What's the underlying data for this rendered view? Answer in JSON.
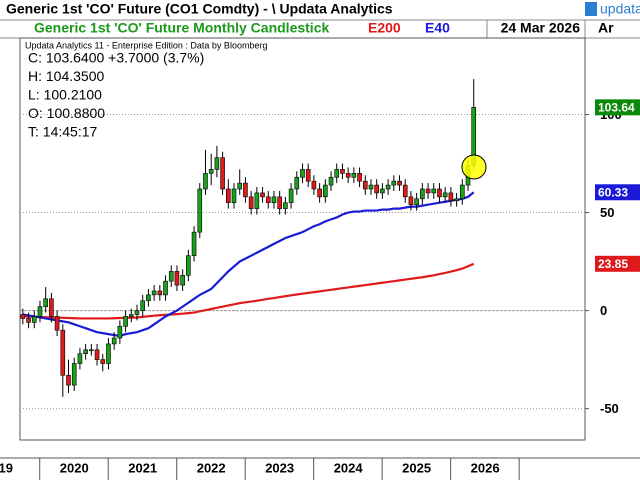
{
  "window_title": "Generic 1st 'CO' Future (CO1 Comdty) - \\ Updata Analytics",
  "logo": "updata",
  "toolbar_right": "Ar",
  "chart_data": {
    "type": "candlestick",
    "title": "Generic 1st 'CO' Future Monthly Candlestick",
    "date": "24 Mar 2026",
    "subtitle": "Updata Analytics 11 - Enterprise Edition : Data by Bloomberg",
    "info": [
      "C: 103.6400  +3.7000 (3.7%)",
      "H: 104.3500",
      "L: 100.2100",
      "O: 100.8800",
      "T: 14:45:17"
    ],
    "title_color": "#1a9a1a",
    "ohlc": {
      "up_color": "#1aa01a",
      "down_color": "#e01a1a",
      "last_color": "#0a8a0a",
      "open": [
        -2,
        -4,
        -6,
        -3,
        2,
        6,
        -3,
        -10,
        -33,
        -38,
        -27,
        -22,
        -20,
        -20,
        -25,
        -27,
        -17,
        -14,
        -8,
        -3,
        -2,
        0,
        5,
        8,
        10,
        8,
        15,
        20,
        13,
        18,
        28,
        40,
        62,
        70,
        72,
        78,
        62,
        55,
        62,
        65,
        58,
        52,
        60,
        58,
        55,
        58,
        52,
        55,
        62,
        68,
        72,
        66,
        62,
        58,
        64,
        68,
        72,
        70,
        68,
        70,
        66,
        62,
        64,
        60,
        62,
        64,
        66,
        64,
        58,
        54,
        57,
        62,
        60,
        62,
        58,
        60,
        56,
        57,
        64,
        74
      ],
      "high": [
        1,
        -1,
        0,
        5,
        12,
        9,
        0,
        -7,
        -25,
        -24,
        -19,
        -17,
        -17,
        -17,
        -22,
        -14,
        -11,
        -5,
        0,
        1,
        3,
        8,
        11,
        13,
        13,
        18,
        23,
        23,
        21,
        31,
        43,
        65,
        82,
        80,
        84,
        81,
        67,
        65,
        72,
        68,
        61,
        63,
        63,
        61,
        61,
        61,
        58,
        65,
        71,
        75,
        75,
        69,
        65,
        67,
        71,
        75,
        75,
        73,
        73,
        73,
        69,
        67,
        67,
        65,
        67,
        69,
        69,
        67,
        61,
        60,
        65,
        65,
        65,
        65,
        63,
        63,
        60,
        67,
        77,
        118
      ],
      "low": [
        -7,
        -9,
        -9,
        -6,
        -1,
        -6,
        -13,
        -44,
        -42,
        -41,
        -30,
        -25,
        -23,
        -28,
        -31,
        -30,
        -20,
        -17,
        -11,
        -6,
        -5,
        -3,
        2,
        5,
        5,
        5,
        12,
        10,
        10,
        15,
        25,
        37,
        59,
        64,
        68,
        59,
        52,
        52,
        59,
        55,
        49,
        49,
        55,
        52,
        52,
        49,
        49,
        52,
        59,
        65,
        63,
        59,
        55,
        55,
        61,
        65,
        67,
        65,
        65,
        63,
        59,
        59,
        57,
        57,
        59,
        61,
        61,
        55,
        51,
        51,
        54,
        57,
        57,
        55,
        55,
        53,
        53,
        54,
        61,
        72
      ],
      "close": [
        -4,
        -6,
        -3,
        2,
        6,
        -3,
        -10,
        -33,
        -38,
        -27,
        -22,
        -20,
        -20,
        -25,
        -27,
        -17,
        -14,
        -8,
        -3,
        -2,
        0,
        5,
        8,
        10,
        8,
        15,
        20,
        13,
        18,
        28,
        40,
        62,
        70,
        72,
        78,
        62,
        55,
        62,
        65,
        58,
        52,
        60,
        58,
        55,
        58,
        52,
        55,
        62,
        68,
        72,
        66,
        62,
        58,
        64,
        68,
        72,
        70,
        68,
        70,
        66,
        62,
        64,
        60,
        62,
        64,
        66,
        64,
        58,
        54,
        57,
        62,
        60,
        62,
        58,
        60,
        56,
        57,
        64,
        74,
        103.64
      ]
    },
    "series": [
      {
        "name": "E200",
        "color": "#e01a1a",
        "values": [
          -3,
          -3.1,
          -3.2,
          -3.3,
          -3.4,
          -3.5,
          -3.6,
          -3.7,
          -3.8,
          -3.9,
          -4,
          -4,
          -4,
          -4,
          -4,
          -4,
          -3.9,
          -3.8,
          -3.7,
          -3.6,
          -3.5,
          -3.2,
          -2.9,
          -2.6,
          -2.4,
          -2.2,
          -2,
          -1.8,
          -1.6,
          -1.3,
          -1,
          -0.4,
          0.2,
          0.8,
          1.4,
          2,
          2.6,
          3.2,
          3.8,
          4.2,
          4.6,
          5,
          5.5,
          6,
          6.4,
          6.9,
          7.3,
          7.8,
          8.2,
          8.6,
          9,
          9.4,
          9.8,
          10.2,
          10.6,
          11,
          11.4,
          11.8,
          12.2,
          12.6,
          13,
          13.4,
          13.8,
          14.2,
          14.6,
          15,
          15.4,
          15.8,
          16.2,
          16.6,
          17,
          17.5,
          18,
          18.6,
          19.2,
          19.9,
          20.6,
          21.4,
          22.6,
          23.85
        ]
      },
      {
        "name": "E40",
        "color": "#1a1ad8",
        "values": [
          -2,
          -2.5,
          -3,
          -3.5,
          -4,
          -4.5,
          -5,
          -5.5,
          -6,
          -7,
          -8,
          -9,
          -10,
          -11,
          -11.5,
          -12,
          -12.5,
          -13,
          -12,
          -11.5,
          -11,
          -10,
          -9,
          -7,
          -5,
          -3,
          -1.5,
          0,
          2,
          4,
          6,
          8,
          9.5,
          11,
          14,
          17,
          20,
          22.5,
          25,
          26.5,
          28,
          29.5,
          31,
          32.5,
          34,
          35.5,
          37,
          38,
          39,
          40,
          41.5,
          43,
          44,
          45.5,
          46.5,
          47.5,
          49,
          50,
          50.5,
          50.5,
          51,
          51,
          51,
          51.5,
          51.5,
          52,
          52,
          52.5,
          53,
          53,
          53.5,
          54,
          54.5,
          55,
          55.5,
          56,
          56.5,
          57,
          58,
          60.33
        ]
      }
    ],
    "xlim": [
      -0.5,
      98.5
    ],
    "xticks": [
      {
        "value": -3,
        "label": "19"
      },
      {
        "value": 9,
        "label": "2020"
      },
      {
        "value": 21,
        "label": "2021"
      },
      {
        "value": 33,
        "label": "2022"
      },
      {
        "value": 45,
        "label": "2023"
      },
      {
        "value": 57,
        "label": "2024"
      },
      {
        "value": 69,
        "label": "2025"
      },
      {
        "value": 81,
        "label": "2026"
      }
    ],
    "ylim": [
      -66,
      139
    ],
    "yticks": [
      -50,
      0,
      50,
      100
    ],
    "grid": true
  }
}
